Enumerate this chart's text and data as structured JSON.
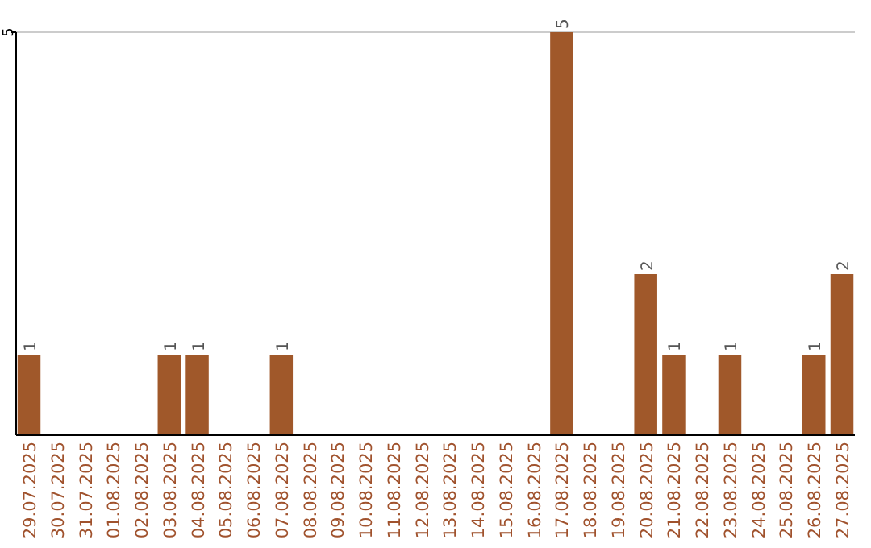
{
  "chart_data": {
    "type": "bar",
    "categories": [
      "29.07.2025",
      "30.07.2025",
      "31.07.2025",
      "01.08.2025",
      "02.08.2025",
      "03.08.2025",
      "04.08.2025",
      "05.08.2025",
      "06.08.2025",
      "07.08.2025",
      "08.08.2025",
      "09.08.2025",
      "10.08.2025",
      "11.08.2025",
      "12.08.2025",
      "13.08.2025",
      "14.08.2025",
      "15.08.2025",
      "16.08.2025",
      "17.08.2025",
      "18.08.2025",
      "19.08.2025",
      "20.08.2025",
      "21.08.2025",
      "22.08.2025",
      "23.08.2025",
      "24.08.2025",
      "25.08.2025",
      "26.08.2025",
      "27.08.2025"
    ],
    "values": [
      1,
      0,
      0,
      0,
      0,
      1,
      1,
      0,
      0,
      1,
      0,
      0,
      0,
      0,
      0,
      0,
      0,
      0,
      0,
      5,
      0,
      0,
      2,
      1,
      0,
      1,
      0,
      0,
      1,
      2
    ],
    "value_labels": [
      "1",
      null,
      null,
      null,
      null,
      "1",
      "1",
      null,
      null,
      "1",
      null,
      null,
      null,
      null,
      null,
      null,
      null,
      null,
      null,
      "5",
      null,
      null,
      "2",
      "1",
      null,
      "1",
      null,
      null,
      "1",
      "2"
    ],
    "color": "#a0582a",
    "ylim": [
      0,
      5
    ],
    "yticks": [
      5
    ],
    "ref_lines": [
      {
        "axis": "y",
        "value": 5,
        "color": "#cccccc"
      }
    ]
  }
}
